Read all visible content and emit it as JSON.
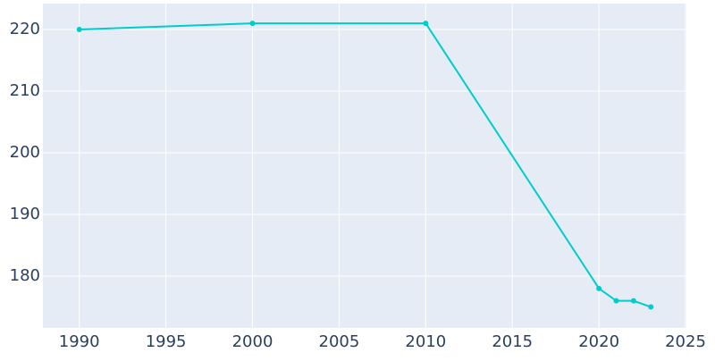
{
  "chart_data": {
    "type": "line",
    "x": [
      1990,
      2000,
      2010,
      2020,
      2021,
      2022,
      2023
    ],
    "series": [
      {
        "color": "#00cccc",
        "values": [
          220,
          221,
          221,
          178,
          176,
          176,
          175
        ]
      }
    ],
    "xlim": [
      1987.9,
      2025.05
    ],
    "xticks": [
      1990,
      1995,
      2000,
      2005,
      2010,
      2015,
      2020,
      2025
    ],
    "ylim": [
      171.6,
      224.2
    ],
    "yticks": [
      180,
      190,
      200,
      210,
      220
    ],
    "grid": true
  }
}
